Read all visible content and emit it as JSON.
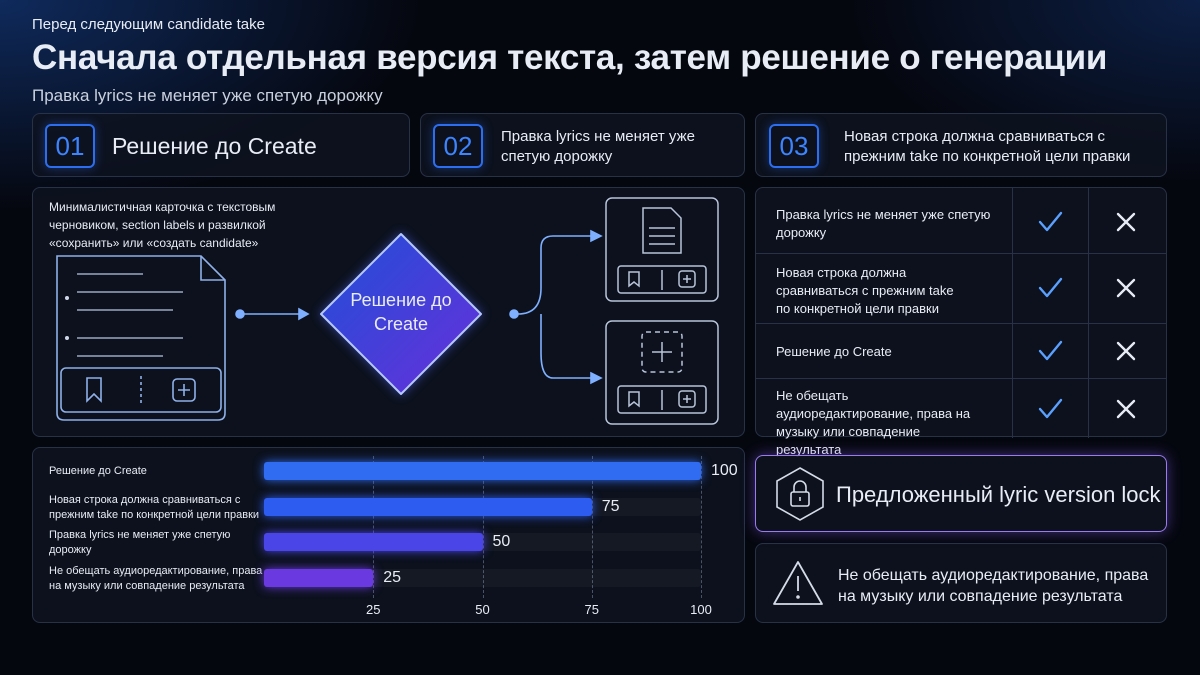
{
  "header": {
    "kicker": "Перед следующим candidate take",
    "title": "Сначала отдельная версия текста, затем решение о генерации",
    "subtitle": "Правка lyrics не меняет уже спетую дорожку"
  },
  "steps": [
    {
      "number": "01",
      "text": "Решение до Create"
    },
    {
      "number": "02",
      "text": "Правка lyrics не меняет уже спетую дорожку"
    },
    {
      "number": "03",
      "text": "Новая строка должна сравниваться с прежним take по конкретной цели правки"
    }
  ],
  "flow": {
    "note": "Минималистичная карточка с текстовым черновиком, section labels и развилкой «сохранить» или «создать candidate»",
    "decision": "Решение до Create"
  },
  "checklist": [
    "Правка lyrics не меняет уже спетую дорожку",
    "Новая строка должна сравниваться с прежним take по конкретной цели правки",
    "Решение до Create",
    "Не обещать аудиоредактирование, права на музыку или совпадение результата"
  ],
  "chart_data": {
    "type": "bar",
    "orientation": "horizontal",
    "categories": [
      "Решение до Create",
      "Новая строка должна сравниваться с прежним take по конкретной цели правки",
      "Правка lyrics не меняет уже спетую дорожку",
      "Не обещать аудиоредактирование, права на музыку или совпадение результата"
    ],
    "values": [
      100,
      75,
      50,
      25
    ],
    "colors": [
      "#2f6cf2",
      "#2d5cf0",
      "#4a45e6",
      "#6a3ae0"
    ],
    "xlim": [
      0,
      100
    ],
    "xticks": [
      25,
      50,
      75,
      100
    ],
    "grid": true
  },
  "lock": "Предложенный lyric version lock",
  "warning": "Не обещать аудиоредактирование, права на музыку или совпадение результата"
}
